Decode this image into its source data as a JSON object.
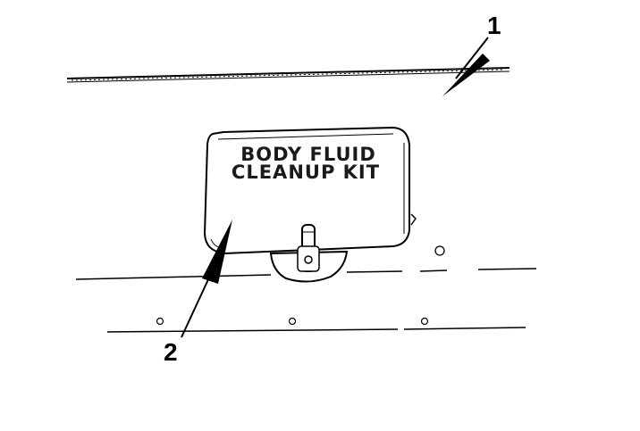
{
  "diagram": {
    "kit_label": {
      "line1": "BODY FLUID",
      "line2": "CLEANUP KIT"
    },
    "callouts": [
      {
        "id": "1",
        "label": "1"
      },
      {
        "id": "2",
        "label": "2"
      }
    ],
    "colors": {
      "ink": "#000000",
      "background": "#ffffff"
    }
  }
}
